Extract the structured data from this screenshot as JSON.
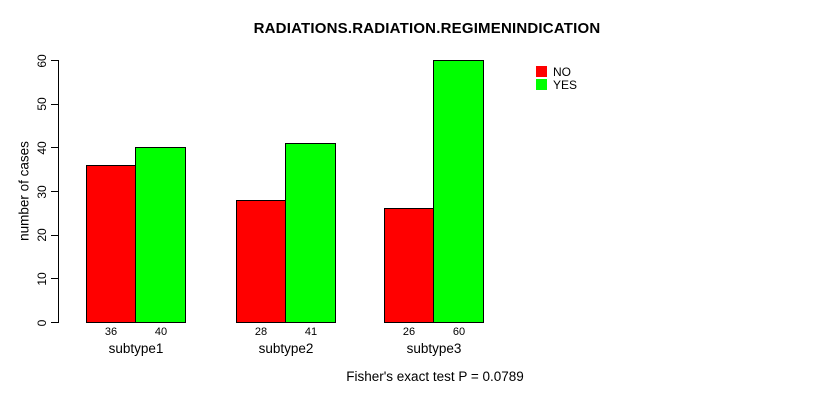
{
  "chart_data": {
    "type": "bar",
    "title": "RADIATIONS.RADIATION.REGIMENINDICATION",
    "ylabel": "number of cases",
    "xlabel": "",
    "categories": [
      "subtype1",
      "subtype2",
      "subtype3"
    ],
    "series": [
      {
        "name": "NO",
        "color": "#FF0000",
        "values": [
          36,
          28,
          26
        ]
      },
      {
        "name": "YES",
        "color": "#00FF00",
        "values": [
          40,
          41,
          60
        ]
      }
    ],
    "ylim": [
      0,
      60
    ],
    "yticks": [
      0,
      10,
      20,
      30,
      40,
      50,
      60
    ],
    "grid": false,
    "legend_position": "top-right",
    "bar_border_color": "#000000",
    "caption": "Fisher's exact test P = 0.0789"
  }
}
